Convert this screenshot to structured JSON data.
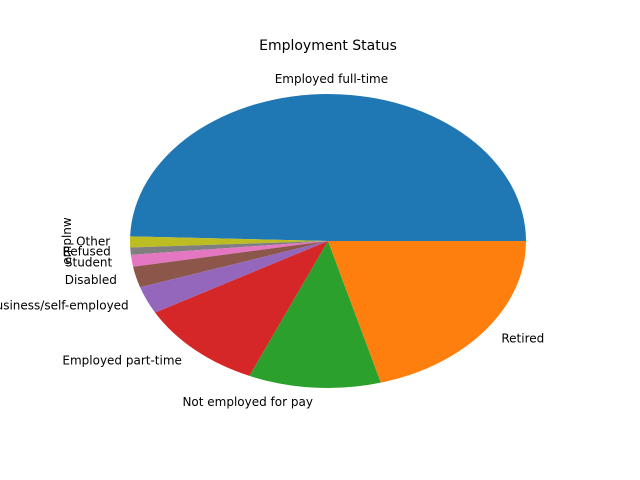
{
  "chart_data": {
    "type": "pie",
    "title": "Employment Status",
    "ylabel": "emplnw",
    "xlabel": "",
    "start_angle_deg": 0,
    "direction": "counterclockwise",
    "slices": [
      {
        "label": "Employed full-time",
        "value": 49.5,
        "color": "#1f77b4"
      },
      {
        "label": "Other",
        "value": 1.2,
        "color": "#bcbd22"
      },
      {
        "label": "Refused",
        "value": 0.8,
        "color": "#7f7f7f"
      },
      {
        "label": "Student",
        "value": 1.3,
        "color": "#e377c2"
      },
      {
        "label": "Disabled",
        "value": 2.3,
        "color": "#8c564b"
      },
      {
        "label": "Have own business/self-employed",
        "value": 3.0,
        "color": "#9467bd"
      },
      {
        "label": "Employed part-time",
        "value": 10.4,
        "color": "#d62728"
      },
      {
        "label": "Not employed for pay",
        "value": 10.8,
        "color": "#2ca02c"
      },
      {
        "label": "Retired",
        "value": 20.7,
        "color": "#ff7f0e"
      }
    ]
  }
}
